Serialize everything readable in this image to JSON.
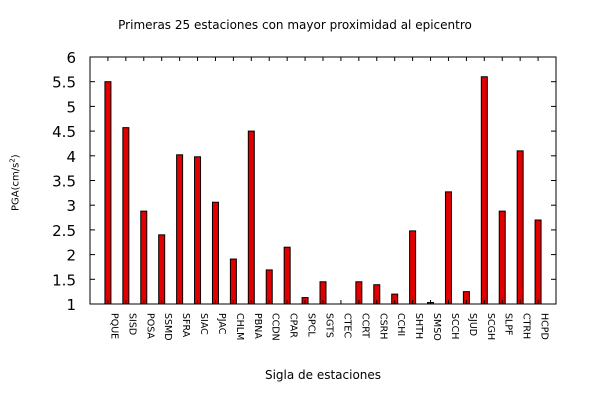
{
  "chart_data": {
    "type": "bar",
    "title": "Primeras 25 estaciones con mayor proximidad al epicentro",
    "xlabel": "Sigla de estaciones",
    "ylabel": "PGA(cm/s",
    "ylabel_superscript": "2",
    "ylabel_suffix": ")",
    "ylim": [
      1,
      6
    ],
    "yticks": [
      "1",
      "1.5",
      "2",
      "2.5",
      "3",
      "3.5",
      "4",
      "4.5",
      "5",
      "5.5",
      "6"
    ],
    "grid": false,
    "legend": "none",
    "bar_color": "#e00000",
    "categories": [
      "PQUE",
      "SISD",
      "POSA",
      "SSMD",
      "SFRA",
      "SIAC",
      "PJAC",
      "CHLM",
      "PBNA",
      "CCDN",
      "CPAR",
      "SPCL",
      "SGTS",
      "CTEC",
      "CCRT",
      "CSRH",
      "CCHI",
      "SHTH",
      "SMSO",
      "SCCH",
      "SJUD",
      "SCGH",
      "SLPF",
      "CTRH",
      "HCPD"
    ],
    "values": [
      5.5,
      4.57,
      2.88,
      2.4,
      4.02,
      3.98,
      3.06,
      1.91,
      4.5,
      1.69,
      2.15,
      1.13,
      1.45,
      1.0,
      1.45,
      1.39,
      1.2,
      2.48,
      1.03,
      3.27,
      1.25,
      5.6,
      2.88,
      4.1,
      2.7
    ]
  }
}
